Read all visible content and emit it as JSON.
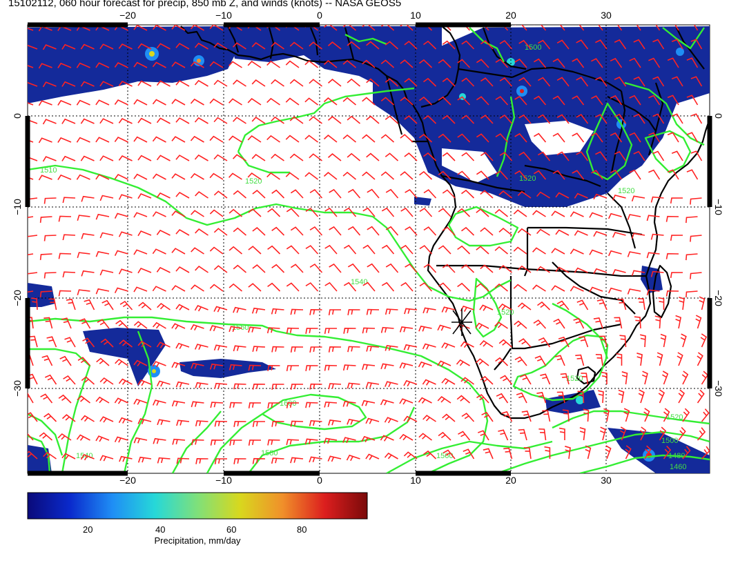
{
  "title": "15102112, 060 hour forecast for precip, 850 mb Z, and winds (knots) -- NASA GEOS5",
  "map": {
    "lon_ticks": [
      "−20",
      "−10",
      "0",
      "10",
      "20",
      "30"
    ],
    "lat_ticks": [
      "0",
      "−10",
      "−20",
      "−30"
    ],
    "barb_color": "#ff2222",
    "contour_color": "#33ee33",
    "coast_color": "#000000",
    "contour_labels": [
      "1510",
      "1520",
      "1540",
      "1560",
      "1600",
      "1580",
      "1560",
      "1520",
      "1520",
      "1520",
      "1500",
      "1480",
      "1460",
      "1520",
      "1520",
      "1500",
      "1540"
    ]
  },
  "colorbar": {
    "label": "Precipitation, mm/day",
    "ticks": [
      "20",
      "40",
      "60",
      "80"
    ],
    "colors": [
      "#0a0a7a",
      "#0a2acc",
      "#1f8ef5",
      "#26d8d8",
      "#7fe07a",
      "#d8d81e",
      "#f0902a",
      "#dc1e1e",
      "#7a0a0a"
    ]
  }
}
